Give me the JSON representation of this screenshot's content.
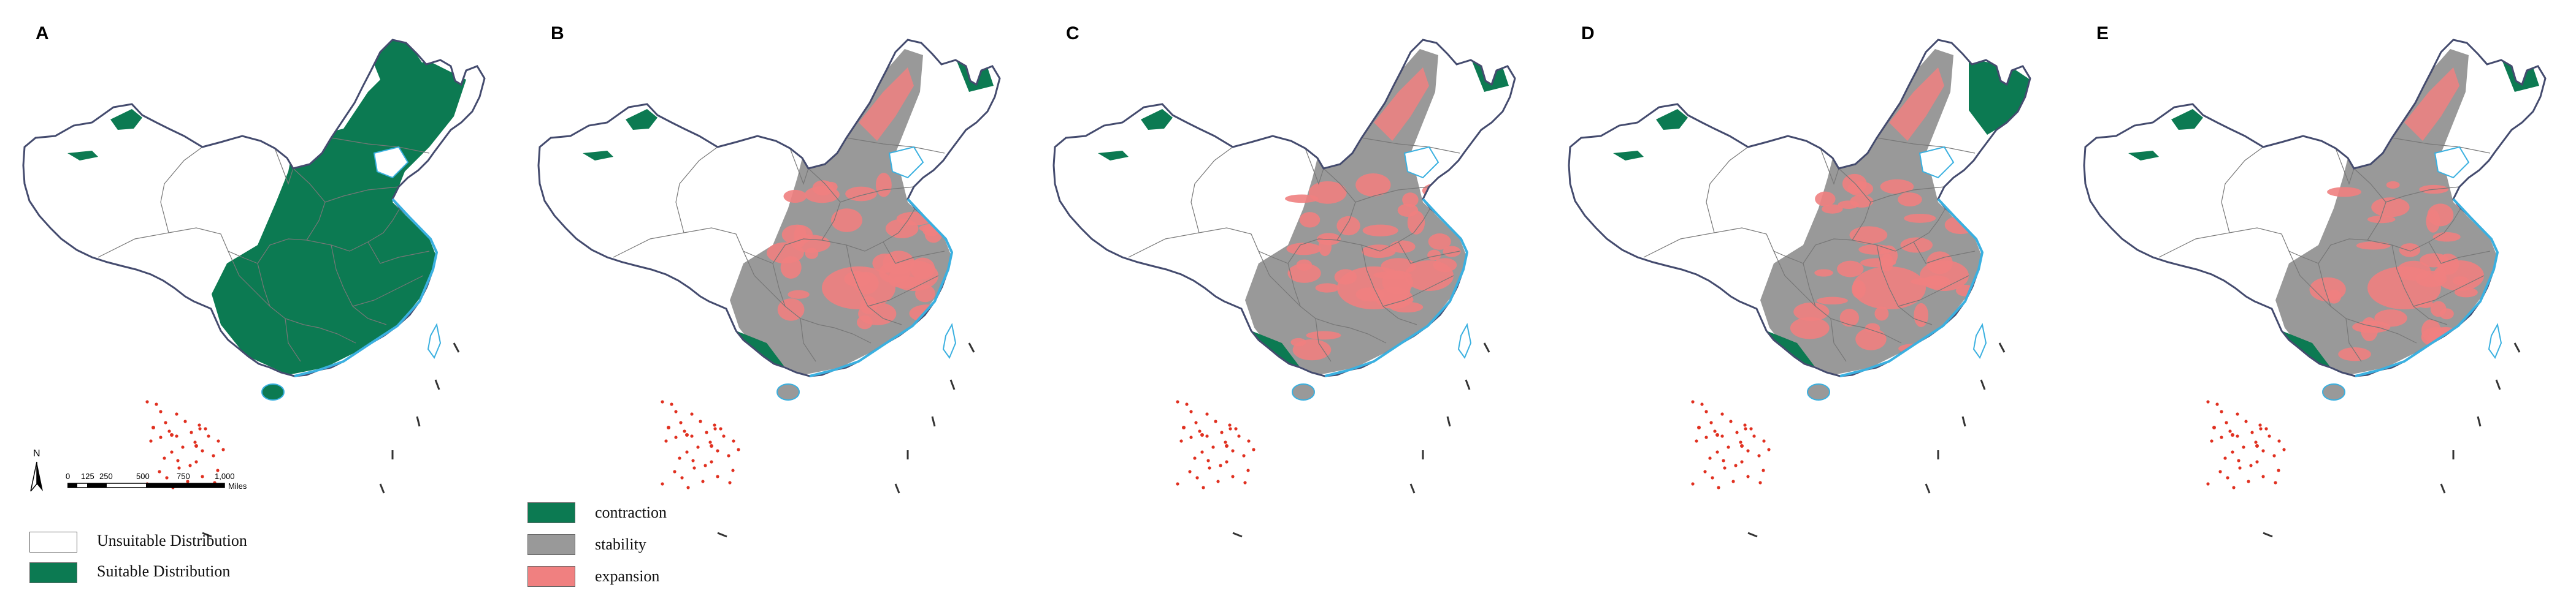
{
  "panels": [
    {
      "label": "A",
      "mode": "current"
    },
    {
      "label": "B",
      "mode": "change"
    },
    {
      "label": "C",
      "mode": "change"
    },
    {
      "label": "D",
      "mode": "change",
      "contraction_ne": true
    },
    {
      "label": "E",
      "mode": "change"
    }
  ],
  "legend_current": {
    "items": [
      {
        "label": "Unsuitable Distribution",
        "color": "#ffffff"
      },
      {
        "label": "Suitable Distribution",
        "color": "#0c7a52"
      }
    ]
  },
  "legend_change": {
    "items": [
      {
        "label": "contraction",
        "color": "#0c7a52"
      },
      {
        "label": "stability",
        "color": "#999999"
      },
      {
        "label": "expansion",
        "color": "#f08080"
      }
    ]
  },
  "north_arrow": {
    "label": "N"
  },
  "scale": {
    "ticks": [
      "0",
      "125",
      "250",
      "500",
      "750",
      "1,000"
    ],
    "unit": "Miles"
  },
  "colors": {
    "suitable": "#0c7a52",
    "stability": "#999999",
    "expansion": "#f08080",
    "coast": "#3ab0e0",
    "border": "#444b6e",
    "islands": "#e03020"
  }
}
